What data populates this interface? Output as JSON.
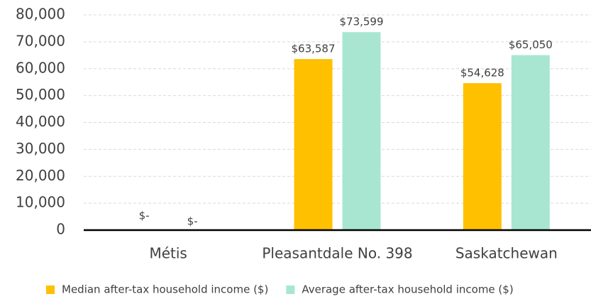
{
  "chart_data": {
    "type": "bar",
    "categories": [
      "Métis",
      "Pleasantdale No. 398",
      "Saskatchewan"
    ],
    "series": [
      {
        "name": "Median after-tax household income ($)",
        "color": "#ffc000",
        "values": [
          0,
          63587,
          54628
        ],
        "value_labels": [
          "$-",
          "$63,587",
          "$54,628"
        ]
      },
      {
        "name": "Average after-tax household income ($)",
        "color": "#a8e6d2",
        "values": [
          0,
          73599,
          65050
        ],
        "value_labels": [
          "$-",
          "$73,599",
          "$65,050"
        ]
      }
    ],
    "ylim": [
      0,
      80000
    ],
    "yticks": [
      0,
      {
        "value": 10000,
        "label": "10,000"
      },
      {
        "value": 20000,
        "label": "20,000"
      },
      {
        "value": 30000,
        "label": "30,000"
      },
      {
        "value": 40000,
        "label": "40,000"
      },
      {
        "value": 50000,
        "label": "50,000"
      },
      {
        "value": 60000,
        "label": "60,000"
      },
      {
        "value": 70000,
        "label": "70,000"
      },
      {
        "value": 80000,
        "label": "80,000"
      }
    ],
    "grid": true,
    "legend": "bottom"
  }
}
